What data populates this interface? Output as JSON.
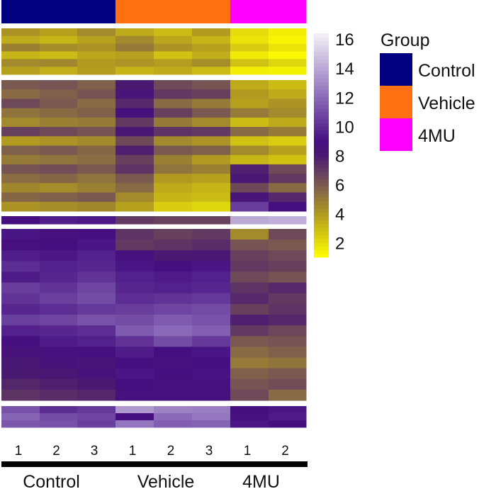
{
  "chart_data": {
    "type": "heatmap",
    "columns": [
      {
        "group": "Control",
        "sample": "1"
      },
      {
        "group": "Control",
        "sample": "2"
      },
      {
        "group": "Control",
        "sample": "3"
      },
      {
        "group": "Vehicle",
        "sample": "1"
      },
      {
        "group": "Vehicle",
        "sample": "2"
      },
      {
        "group": "Vehicle",
        "sample": "3"
      },
      {
        "group": "4MU",
        "sample": "1"
      },
      {
        "group": "4MU",
        "sample": "2"
      }
    ],
    "groups": [
      {
        "name": "Control",
        "color": "#000080",
        "count": 3
      },
      {
        "name": "Vehicle",
        "color": "#ff7010",
        "count": 3
      },
      {
        "name": "4MU",
        "color": "#ff00ff",
        "count": 2
      }
    ],
    "legend_title": "Group",
    "colorbar": {
      "ticks": [
        "16",
        "14",
        "12",
        "10",
        "8",
        "6",
        "4",
        "2"
      ],
      "range": [
        1,
        16.4
      ],
      "stops": [
        [
          1,
          "#ffff00"
        ],
        [
          4,
          "#b09a20"
        ],
        [
          6,
          "#7a5a50"
        ],
        [
          8,
          "#4a1a72"
        ],
        [
          9,
          "#450f80"
        ],
        [
          12,
          "#8a6ab8"
        ],
        [
          16.4,
          "#f4f2f8"
        ]
      ]
    },
    "row_clusters": [
      {
        "rows": [
          [
            4.2,
            3.8,
            4.5,
            3.5,
            3.0,
            4.0,
            2.0,
            1.5
          ],
          [
            3.5,
            3.2,
            3.8,
            4.5,
            3.6,
            3.2,
            1.8,
            1.3
          ],
          [
            4.8,
            4.4,
            4.2,
            5.0,
            4.2,
            3.8,
            2.5,
            1.8
          ],
          [
            3.2,
            3.0,
            3.6,
            3.8,
            2.8,
            3.4,
            1.6,
            1.2
          ],
          [
            4.5,
            4.6,
            4.0,
            4.2,
            3.9,
            4.4,
            2.8,
            2.2
          ],
          [
            3.8,
            3.4,
            3.9,
            3.2,
            3.5,
            3.0,
            1.5,
            1.4
          ]
        ]
      },
      {
        "rows": [
          [
            6.0,
            6.2,
            5.8,
            8.0,
            6.5,
            6.2,
            3.5,
            3.0
          ],
          [
            5.5,
            5.8,
            6.2,
            8.5,
            7.0,
            6.8,
            4.0,
            3.5
          ],
          [
            6.5,
            6.0,
            5.5,
            7.5,
            5.5,
            5.0,
            3.8,
            4.2
          ],
          [
            5.2,
            5.5,
            5.8,
            8.8,
            6.8,
            6.0,
            5.0,
            4.5
          ],
          [
            4.5,
            4.8,
            5.0,
            7.0,
            5.0,
            4.5,
            3.0,
            3.5
          ],
          [
            6.8,
            6.5,
            6.2,
            8.2,
            7.2,
            7.0,
            5.5,
            5.0
          ],
          [
            4.0,
            4.2,
            4.5,
            6.5,
            4.5,
            4.2,
            2.8,
            2.5
          ],
          [
            5.8,
            6.0,
            5.6,
            7.8,
            6.0,
            5.8,
            4.5,
            3.8
          ],
          [
            5.0,
            5.2,
            5.4,
            6.8,
            4.8,
            4.0,
            3.2,
            2.8
          ],
          [
            6.2,
            6.4,
            6.0,
            7.2,
            5.2,
            4.8,
            7.8,
            6.5
          ],
          [
            5.4,
            5.6,
            5.2,
            6.0,
            4.0,
            3.8,
            8.2,
            7.0
          ],
          [
            4.6,
            4.4,
            4.8,
            5.5,
            3.5,
            3.2,
            6.5,
            5.5
          ],
          [
            5.6,
            5.8,
            6.0,
            4.5,
            3.2,
            3.0,
            8.5,
            7.5
          ],
          [
            4.2,
            4.4,
            4.6,
            3.8,
            2.5,
            2.2,
            10.5,
            9.0
          ]
        ]
      },
      {
        "rows": [
          [
            9.0,
            9.5,
            9.3,
            7.0,
            6.8,
            6.8,
            14.0,
            14.2
          ]
        ]
      },
      {
        "rows": [
          [
            9.2,
            8.8,
            9.0,
            7.2,
            6.8,
            7.0,
            4.5,
            6.5
          ],
          [
            8.8,
            9.0,
            9.2,
            7.0,
            7.2,
            7.4,
            6.2,
            6.0
          ],
          [
            9.5,
            9.3,
            9.6,
            8.8,
            8.0,
            8.2,
            6.8,
            6.5
          ],
          [
            10.0,
            9.6,
            9.8,
            9.2,
            9.0,
            9.2,
            7.0,
            6.8
          ],
          [
            9.4,
            9.8,
            10.2,
            9.6,
            9.4,
            9.6,
            6.5,
            6.2
          ],
          [
            10.5,
            10.2,
            10.8,
            9.8,
            9.6,
            9.8,
            7.2,
            7.5
          ],
          [
            10.2,
            10.6,
            11.0,
            10.0,
            10.2,
            10.4,
            7.5,
            7.0
          ],
          [
            9.8,
            10.0,
            10.4,
            10.5,
            10.8,
            11.0,
            6.8,
            7.2
          ],
          [
            10.6,
            10.8,
            11.2,
            11.0,
            11.5,
            11.2,
            7.8,
            7.6
          ],
          [
            9.6,
            9.8,
            10.0,
            11.5,
            12.0,
            11.6,
            7.0,
            6.6
          ],
          [
            9.0,
            9.4,
            9.6,
            10.2,
            11.0,
            10.4,
            6.0,
            6.2
          ],
          [
            8.6,
            8.8,
            9.0,
            9.4,
            9.0,
            9.2,
            5.5,
            5.8
          ],
          [
            8.2,
            8.6,
            8.4,
            9.0,
            8.8,
            9.0,
            5.0,
            5.2
          ],
          [
            8.0,
            8.2,
            8.6,
            9.2,
            9.0,
            9.1,
            5.8,
            6.0
          ],
          [
            7.6,
            7.8,
            8.0,
            9.0,
            8.8,
            8.9,
            6.2,
            6.4
          ],
          [
            7.2,
            7.4,
            7.6,
            8.8,
            8.9,
            8.8,
            6.5,
            5.5
          ]
        ]
      },
      {
        "rows": [
          [
            11.2,
            10.0,
            10.4,
            13.5,
            12.8,
            12.6,
            9.0,
            9.2
          ],
          [
            11.8,
            11.0,
            10.8,
            9.0,
            12.0,
            12.4,
            8.8,
            9.4
          ],
          [
            11.4,
            11.2,
            10.6,
            12.4,
            11.6,
            11.8,
            9.2,
            9.0
          ]
        ]
      }
    ]
  }
}
